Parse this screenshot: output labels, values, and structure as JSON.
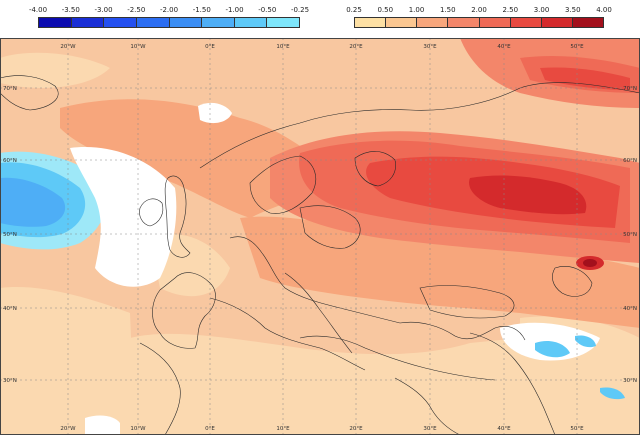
{
  "legend": {
    "negative": {
      "labels": [
        "-4.00",
        "-3.50",
        "-3.00",
        "-2.50",
        "-2.00",
        "-1.50",
        "-1.00",
        "-0.50",
        "-0.25"
      ],
      "colors": [
        "#0b0bb0",
        "#1a2fd6",
        "#2450f0",
        "#2c6ef2",
        "#3b8ef4",
        "#4eaef6",
        "#5ec9f7",
        "#7ee6fb"
      ]
    },
    "positive": {
      "labels": [
        "0.25",
        "0.50",
        "1.00",
        "1.50",
        "2.00",
        "2.50",
        "3.00",
        "3.50",
        "4.00"
      ],
      "colors": [
        "#fde0a4",
        "#fbc791",
        "#f7a67c",
        "#f3866a",
        "#ef6a56",
        "#e84a40",
        "#d42a2c",
        "#a3101c"
      ]
    }
  },
  "map": {
    "top_labels": [
      "20°W",
      "10°W",
      "0°E",
      "10°E",
      "20°E",
      "30°E",
      "40°E",
      "50°E"
    ],
    "bottom_labels": [
      "20°W",
      "10°W",
      "0°E",
      "10°E",
      "20°E",
      "30°E",
      "40°E",
      "50°E"
    ],
    "left_labels": [
      "70°N",
      "60°N",
      "50°N",
      "40°N",
      "30°N"
    ],
    "right_labels": [
      "70°N",
      "60°N",
      "50°N",
      "40°N",
      "30°N"
    ]
  }
}
